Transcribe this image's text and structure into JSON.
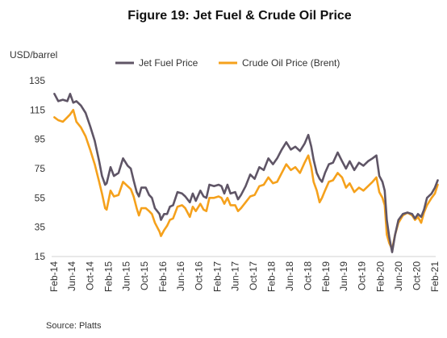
{
  "chart_data": {
    "type": "line",
    "title": "Figure 19: Jet Fuel & Crude Oil Price",
    "ylabel": "USD/barrel",
    "xlabel": "",
    "ylim": [
      15,
      135
    ],
    "yticks": [
      15,
      35,
      55,
      75,
      95,
      115,
      135
    ],
    "xticks": [
      "Feb-14",
      "Jun-14",
      "Oct-14",
      "Feb-15",
      "Jun-15",
      "Oct-15",
      "Feb-16",
      "Jun-16",
      "Oct-16",
      "Feb-17",
      "Jun-17",
      "Oct-17",
      "Feb-18",
      "Jun-18",
      "Oct-18",
      "Feb-19",
      "Jun-19",
      "Oct-19",
      "Feb-20",
      "Jun-20",
      "Oct-20",
      "Feb-21"
    ],
    "grid": false,
    "legend_position": "top-center",
    "source": "Source: Platts",
    "series": [
      {
        "name": "Jet Fuel Price",
        "color": "#5f5566",
        "points": [
          [
            "2014-02-03",
            126
          ],
          [
            "2014-03-01",
            121
          ],
          [
            "2014-04-01",
            122
          ],
          [
            "2014-05-01",
            121
          ],
          [
            "2014-05-20",
            126
          ],
          [
            "2014-06-10",
            120
          ],
          [
            "2014-07-01",
            121
          ],
          [
            "2014-08-01",
            118
          ],
          [
            "2014-09-01",
            113
          ],
          [
            "2014-10-01",
            104
          ],
          [
            "2014-11-01",
            94
          ],
          [
            "2014-12-01",
            80
          ],
          [
            "2014-12-20",
            70
          ],
          [
            "2015-01-10",
            64
          ],
          [
            "2015-01-20",
            65
          ],
          [
            "2015-02-15",
            76
          ],
          [
            "2015-03-10",
            70
          ],
          [
            "2015-04-10",
            72
          ],
          [
            "2015-05-10",
            82
          ],
          [
            "2015-06-10",
            77
          ],
          [
            "2015-07-01",
            75
          ],
          [
            "2015-07-20",
            67
          ],
          [
            "2015-08-10",
            59
          ],
          [
            "2015-08-25",
            56
          ],
          [
            "2015-09-10",
            62
          ],
          [
            "2015-10-10",
            62
          ],
          [
            "2015-11-01",
            57
          ],
          [
            "2015-11-20",
            55
          ],
          [
            "2015-12-10",
            48
          ],
          [
            "2016-01-10",
            44
          ],
          [
            "2016-01-20",
            40
          ],
          [
            "2016-02-10",
            44
          ],
          [
            "2016-03-01",
            44
          ],
          [
            "2016-03-20",
            49
          ],
          [
            "2016-04-10",
            50
          ],
          [
            "2016-05-10",
            59
          ],
          [
            "2016-06-10",
            58
          ],
          [
            "2016-07-01",
            56
          ],
          [
            "2016-08-01",
            52
          ],
          [
            "2016-08-20",
            58
          ],
          [
            "2016-09-10",
            53
          ],
          [
            "2016-10-10",
            60
          ],
          [
            "2016-11-01",
            56
          ],
          [
            "2016-11-20",
            55
          ],
          [
            "2016-12-10",
            64
          ],
          [
            "2017-01-10",
            63
          ],
          [
            "2017-02-10",
            64
          ],
          [
            "2017-03-01",
            63
          ],
          [
            "2017-03-20",
            58
          ],
          [
            "2017-04-10",
            64
          ],
          [
            "2017-05-01",
            58
          ],
          [
            "2017-06-01",
            59
          ],
          [
            "2017-06-20",
            54
          ],
          [
            "2017-07-10",
            57
          ],
          [
            "2017-08-10",
            63
          ],
          [
            "2017-09-10",
            71
          ],
          [
            "2017-10-10",
            68
          ],
          [
            "2017-11-10",
            76
          ],
          [
            "2017-12-10",
            74
          ],
          [
            "2018-01-10",
            82
          ],
          [
            "2018-02-10",
            78
          ],
          [
            "2018-03-10",
            82
          ],
          [
            "2018-04-10",
            88
          ],
          [
            "2018-05-10",
            93
          ],
          [
            "2018-06-10",
            88
          ],
          [
            "2018-07-10",
            90
          ],
          [
            "2018-08-10",
            87
          ],
          [
            "2018-09-10",
            92
          ],
          [
            "2018-10-05",
            98
          ],
          [
            "2018-10-25",
            90
          ],
          [
            "2018-11-10",
            81
          ],
          [
            "2018-12-01",
            72
          ],
          [
            "2018-12-20",
            68
          ],
          [
            "2019-01-05",
            66
          ],
          [
            "2019-01-25",
            72
          ],
          [
            "2019-02-20",
            78
          ],
          [
            "2019-03-20",
            79
          ],
          [
            "2019-04-20",
            86
          ],
          [
            "2019-05-20",
            80
          ],
          [
            "2019-06-15",
            75
          ],
          [
            "2019-07-10",
            80
          ],
          [
            "2019-08-10",
            74
          ],
          [
            "2019-09-10",
            79
          ],
          [
            "2019-10-10",
            77
          ],
          [
            "2019-11-10",
            80
          ],
          [
            "2019-12-10",
            82
          ],
          [
            "2020-01-05",
            84
          ],
          [
            "2020-01-25",
            70
          ],
          [
            "2020-02-15",
            66
          ],
          [
            "2020-03-01",
            60
          ],
          [
            "2020-03-15",
            40
          ],
          [
            "2020-04-01",
            28
          ],
          [
            "2020-04-20",
            18
          ],
          [
            "2020-05-10",
            30
          ],
          [
            "2020-06-01",
            40
          ],
          [
            "2020-07-01",
            44
          ],
          [
            "2020-08-01",
            45
          ],
          [
            "2020-09-01",
            44
          ],
          [
            "2020-09-20",
            41
          ],
          [
            "2020-10-10",
            44
          ],
          [
            "2020-11-01",
            42
          ],
          [
            "2020-11-20",
            47
          ],
          [
            "2020-12-10",
            55
          ],
          [
            "2021-01-10",
            58
          ],
          [
            "2021-02-01",
            62
          ],
          [
            "2021-02-20",
            67
          ]
        ]
      },
      {
        "name": "Crude Oil Price (Brent)",
        "color": "#f5a11c",
        "points": [
          [
            "2014-02-03",
            110
          ],
          [
            "2014-03-01",
            108
          ],
          [
            "2014-04-01",
            107
          ],
          [
            "2014-05-01",
            110
          ],
          [
            "2014-05-20",
            112
          ],
          [
            "2014-06-10",
            115
          ],
          [
            "2014-07-01",
            107
          ],
          [
            "2014-08-01",
            103
          ],
          [
            "2014-09-01",
            97
          ],
          [
            "2014-10-01",
            88
          ],
          [
            "2014-11-01",
            78
          ],
          [
            "2014-12-01",
            66
          ],
          [
            "2014-12-20",
            58
          ],
          [
            "2015-01-10",
            48
          ],
          [
            "2015-01-20",
            47
          ],
          [
            "2015-02-15",
            60
          ],
          [
            "2015-03-10",
            56
          ],
          [
            "2015-04-10",
            57
          ],
          [
            "2015-05-10",
            66
          ],
          [
            "2015-06-10",
            63
          ],
          [
            "2015-07-01",
            61
          ],
          [
            "2015-07-20",
            56
          ],
          [
            "2015-08-10",
            48
          ],
          [
            "2015-08-25",
            43
          ],
          [
            "2015-09-10",
            48
          ],
          [
            "2015-10-10",
            48
          ],
          [
            "2015-11-01",
            46
          ],
          [
            "2015-11-20",
            44
          ],
          [
            "2015-12-10",
            38
          ],
          [
            "2016-01-10",
            32
          ],
          [
            "2016-01-20",
            29
          ],
          [
            "2016-02-10",
            33
          ],
          [
            "2016-03-01",
            36
          ],
          [
            "2016-03-20",
            40
          ],
          [
            "2016-04-10",
            41
          ],
          [
            "2016-05-10",
            49
          ],
          [
            "2016-06-10",
            50
          ],
          [
            "2016-07-01",
            48
          ],
          [
            "2016-08-01",
            42
          ],
          [
            "2016-08-20",
            49
          ],
          [
            "2016-09-10",
            46
          ],
          [
            "2016-10-10",
            51
          ],
          [
            "2016-11-01",
            47
          ],
          [
            "2016-11-20",
            46
          ],
          [
            "2016-12-10",
            55
          ],
          [
            "2017-01-10",
            55
          ],
          [
            "2017-02-10",
            56
          ],
          [
            "2017-03-01",
            55
          ],
          [
            "2017-03-20",
            51
          ],
          [
            "2017-04-10",
            55
          ],
          [
            "2017-05-01",
            50
          ],
          [
            "2017-06-01",
            50
          ],
          [
            "2017-06-20",
            46
          ],
          [
            "2017-07-10",
            48
          ],
          [
            "2017-08-10",
            52
          ],
          [
            "2017-09-10",
            56
          ],
          [
            "2017-10-10",
            57
          ],
          [
            "2017-11-10",
            63
          ],
          [
            "2017-12-10",
            64
          ],
          [
            "2018-01-10",
            69
          ],
          [
            "2018-02-10",
            65
          ],
          [
            "2018-03-10",
            66
          ],
          [
            "2018-04-10",
            72
          ],
          [
            "2018-05-10",
            78
          ],
          [
            "2018-06-10",
            74
          ],
          [
            "2018-07-10",
            76
          ],
          [
            "2018-08-10",
            72
          ],
          [
            "2018-09-10",
            79
          ],
          [
            "2018-10-05",
            84
          ],
          [
            "2018-10-25",
            76
          ],
          [
            "2018-11-10",
            66
          ],
          [
            "2018-12-01",
            60
          ],
          [
            "2018-12-20",
            52
          ],
          [
            "2019-01-05",
            55
          ],
          [
            "2019-01-25",
            60
          ],
          [
            "2019-02-20",
            66
          ],
          [
            "2019-03-20",
            67
          ],
          [
            "2019-04-20",
            72
          ],
          [
            "2019-05-20",
            69
          ],
          [
            "2019-06-15",
            62
          ],
          [
            "2019-07-10",
            65
          ],
          [
            "2019-08-10",
            59
          ],
          [
            "2019-09-10",
            62
          ],
          [
            "2019-10-10",
            60
          ],
          [
            "2019-11-10",
            63
          ],
          [
            "2019-12-10",
            66
          ],
          [
            "2020-01-05",
            69
          ],
          [
            "2020-01-25",
            59
          ],
          [
            "2020-02-15",
            55
          ],
          [
            "2020-03-01",
            50
          ],
          [
            "2020-03-15",
            30
          ],
          [
            "2020-04-01",
            24
          ],
          [
            "2020-04-20",
            20
          ],
          [
            "2020-05-10",
            30
          ],
          [
            "2020-06-01",
            38
          ],
          [
            "2020-07-01",
            43
          ],
          [
            "2020-08-01",
            45
          ],
          [
            "2020-09-01",
            43
          ],
          [
            "2020-09-20",
            40
          ],
          [
            "2020-10-10",
            42
          ],
          [
            "2020-11-01",
            38
          ],
          [
            "2020-11-20",
            45
          ],
          [
            "2020-12-10",
            50
          ],
          [
            "2021-01-10",
            55
          ],
          [
            "2021-02-01",
            58
          ],
          [
            "2021-02-20",
            64
          ]
        ]
      }
    ]
  }
}
